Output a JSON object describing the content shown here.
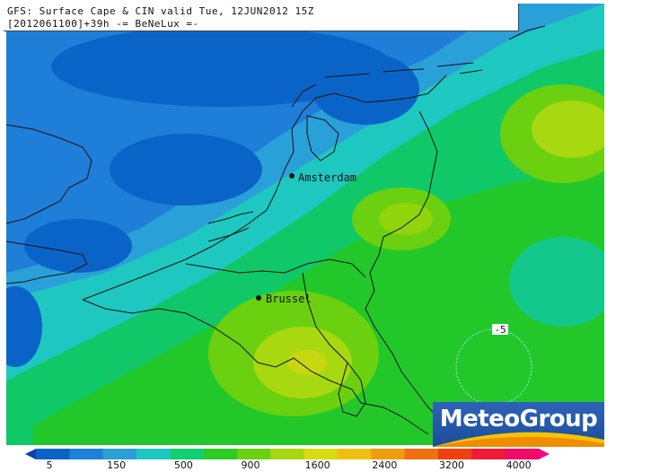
{
  "header": {
    "line1": "GFS: Surface Cape & CIN valid Tue, 12JUN2012 15Z",
    "line2": "[2012061100]+39h -= BeNeLux =-"
  },
  "map": {
    "cities": [
      {
        "name": "Amsterdam"
      },
      {
        "name": "Brussel"
      }
    ],
    "cin_contour_label": "-5"
  },
  "logo": {
    "text": "MeteoGroup"
  },
  "colorbar": {
    "labels": [
      "5",
      "150",
      "500",
      "900",
      "1600",
      "2400",
      "3200",
      "4000"
    ],
    "colors": [
      "#0a64c8",
      "#1a82d8",
      "#2aa0d8",
      "#1ec8c0",
      "#10d070",
      "#2ccc20",
      "#6ad010",
      "#a8d810",
      "#d8dc10",
      "#f0c010",
      "#f09c10",
      "#f07010",
      "#f04010",
      "#f01a38",
      "#f00a6a"
    ]
  },
  "colors": {
    "deep_blue": "#0a5cc0",
    "blue": "#1e7ed8",
    "light_blue": "#2aa0d8",
    "teal": "#18c0b0",
    "green": "#18c860",
    "bright_green": "#2ecc18",
    "yellow_green": "#a8d20a",
    "yellow": "#c8d40a",
    "logo_blue": "#2356a8"
  }
}
